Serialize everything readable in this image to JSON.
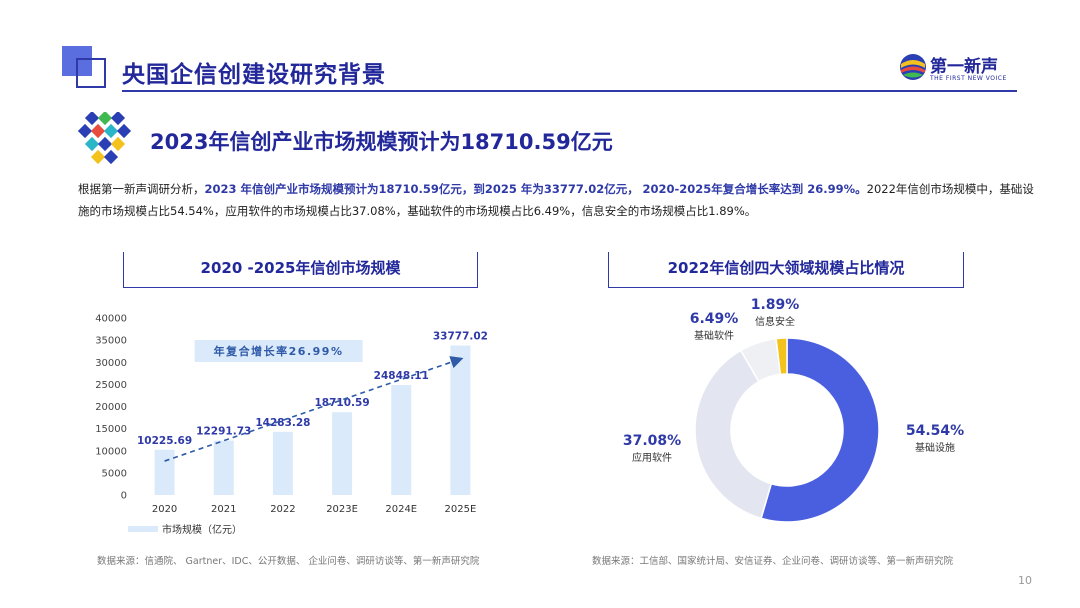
{
  "header": {
    "title": "央国企信创建设研究背景",
    "logo_text": "第一新声",
    "logo_sub": "THE FIRST NEW VOICE"
  },
  "subtitle": "2023年信创产业市场规模预计为18710.59亿元",
  "description": {
    "p1": "根据第一新声调研分析，",
    "h1": "2023 年信创产业市场规模预计为18710.59亿元，到2025 年为33777.02亿元，",
    "p2": "  ",
    "h2": "2020-2025年复合增长率达到 26.99%。",
    "p3": "2022年信创市场规模中，基础设施的市场规模占比54.54%，应用软件的市场规模占比37.08%，基础软件的市场规模占比6.49%，信息安全的市场规模占比1.89%。"
  },
  "bar_section_title": "2020 -2025年信创市场规模",
  "pie_section_title": "2022年信创四大领域规模占比情况",
  "source_left": "数据来源：信通院、 Gartner、IDC、公开数据、 企业问卷、调研访谈等、第一新声研究院",
  "source_right": "数据来源：工信部、国家统计局、安信证券、企业问卷、调研访谈等、第一新声研究院",
  "page_number": "10",
  "colors": {
    "brand": "#22289a",
    "bar": "#dbeafb",
    "trend": "#2f5aa8",
    "infra": "#4a5fe0",
    "app": "#e3e6f0",
    "basic": "#eef0f4",
    "security": "#f4c21d"
  },
  "chart_data": [
    {
      "type": "bar",
      "categories": [
        "2020",
        "2021",
        "2022",
        "2023E",
        "2024E",
        "2025E"
      ],
      "series": [
        {
          "name": "市场规模（亿元）",
          "values": [
            10225.69,
            12291.73,
            14283.28,
            18710.59,
            24848.11,
            33777.02
          ]
        }
      ],
      "data_labels": [
        "10225.69",
        "12291.73",
        "14283.28",
        "18710.59",
        "24848.11",
        "33777.02"
      ],
      "ylim": [
        0,
        40000
      ],
      "yticks": [
        0,
        5000,
        10000,
        15000,
        20000,
        25000,
        30000,
        35000,
        40000
      ],
      "annotation": "年复合增长率26.99%",
      "trendline": true,
      "legend": "bottom-left",
      "grid": false
    },
    {
      "type": "pie",
      "donut": true,
      "slices": [
        {
          "name": "基础设施",
          "value": 54.54,
          "label": "54.54%"
        },
        {
          "name": "应用软件",
          "value": 37.08,
          "label": "37.08%"
        },
        {
          "name": "基础软件",
          "value": 6.49,
          "label": "6.49%"
        },
        {
          "name": "信息安全",
          "value": 1.89,
          "label": "1.89%"
        }
      ]
    }
  ]
}
